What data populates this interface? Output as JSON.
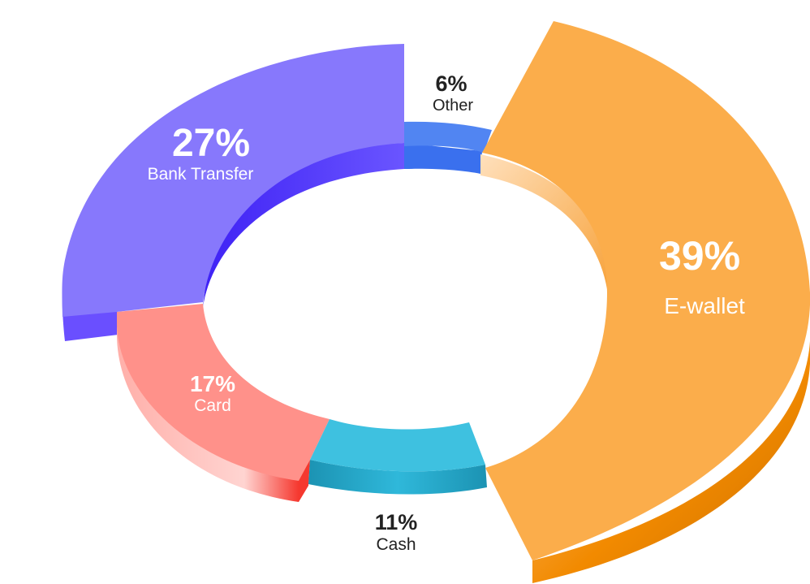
{
  "chart_data": {
    "type": "pie",
    "variant": "exploded-3d-donut",
    "title": "",
    "categories": [
      "E-wallet",
      "Bank Transfer",
      "Card",
      "Cash",
      "Other"
    ],
    "values": [
      39,
      27,
      17,
      11,
      6
    ],
    "labels": {
      "e_wallet": {
        "pct": "39%",
        "name": "E-wallet"
      },
      "bank_transfer": {
        "pct": "27%",
        "name": "Bank Transfer"
      },
      "card": {
        "pct": "17%",
        "name": "Card"
      },
      "cash": {
        "pct": "11%",
        "name": "Cash"
      },
      "other": {
        "pct": "6%",
        "name": "Other"
      }
    },
    "colors": {
      "e_wallet": {
        "top": "#FBAD4B",
        "side": "#F28A00",
        "side_dark": "#C96E00"
      },
      "bank_transfer": {
        "top": "#8778FC",
        "side": "#5B43FF",
        "side_dark": "#3F22F5"
      },
      "card": {
        "top": "#FF918A",
        "side": "#FFC2BE",
        "side_dark": "#F5382F"
      },
      "cash": {
        "top": "#3EC1E0",
        "side": "#24AFD4",
        "side_dark": "#1C93B3"
      },
      "other": {
        "top": "#5185F2",
        "side": "#3A70EE",
        "side_dark": "#2D5AD0"
      }
    },
    "legend": "none"
  }
}
